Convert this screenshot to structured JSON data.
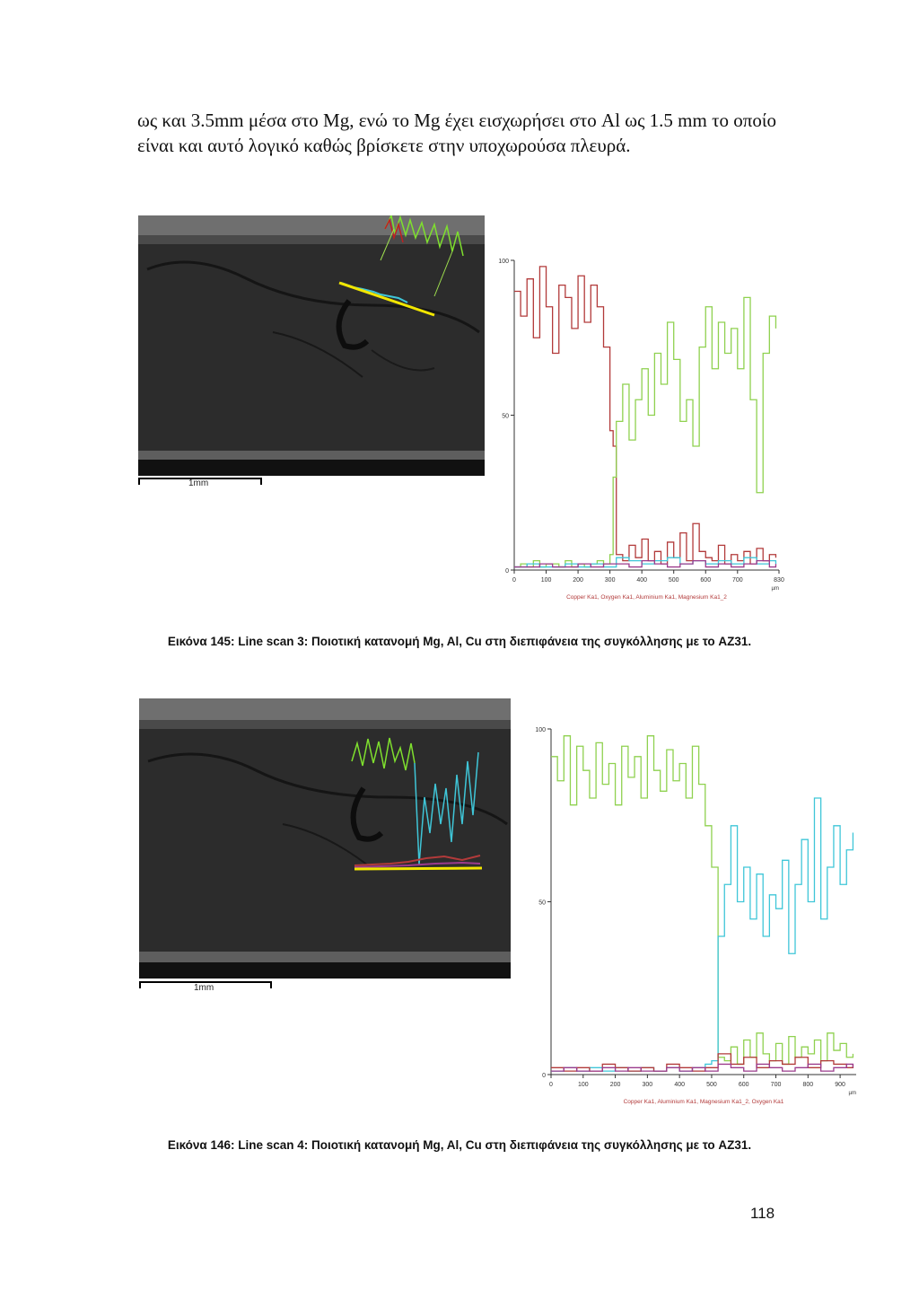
{
  "paragraph": "ως και 3.5mm μέσα στο Mg, ενώ το Mg έχει εισχωρήσει στο Al ως 1.5 mm το οποίο είναι και αυτό λογικό καθώς βρίσκετε στην υποχωρούσα πλευρά.",
  "figures": [
    {
      "scale_label": "1mm",
      "caption": "Εικόνα 145: Line scan 3: Ποιοτική κατανομή Mg, Al, Cu στη διεπιφάνεια της συγκόλλησης με το AZ31."
    },
    {
      "scale_label": "1mm",
      "caption": "Εικόνα 146: Line scan 4: Ποιοτική κατανομή Mg, Al, Cu στη διεπιφάνεια της συγκόλλησης με το AZ31."
    }
  ],
  "page_number": "118",
  "colors": {
    "copper": "#b23a3a",
    "oxygen": "#3fc6d8",
    "aluminium": "#8fd14f",
    "magnesium": "#9b3b8c",
    "beam": "#f2e600"
  },
  "chart_data": [
    {
      "type": "line",
      "xlabel": "µm",
      "ylabel": "",
      "xlim": [
        0,
        830
      ],
      "ylim": [
        0,
        100
      ],
      "x_ticks": [
        "0",
        "100",
        "200",
        "300",
        "400",
        "500",
        "600",
        "700",
        "830"
      ],
      "y_ticks": [
        "0",
        "50",
        "100"
      ],
      "legend": "Copper Ka1, Oxygen Ka1, Aluminium Ka1, Magnesium Ka1_2",
      "series": [
        {
          "name": "Copper Ka1",
          "color": "#b23a3a",
          "x": [
            0,
            20,
            40,
            60,
            80,
            100,
            120,
            140,
            160,
            180,
            200,
            220,
            240,
            260,
            280,
            300,
            310,
            320,
            340,
            360,
            380,
            400,
            420,
            440,
            460,
            480,
            500,
            520,
            540,
            560,
            580,
            600,
            620,
            640,
            660,
            680,
            700,
            720,
            740,
            760,
            780,
            800,
            820
          ],
          "y": [
            90,
            82,
            94,
            75,
            98,
            85,
            70,
            92,
            88,
            78,
            95,
            80,
            92,
            85,
            72,
            45,
            40,
            5,
            3,
            8,
            4,
            10,
            3,
            6,
            2,
            9,
            4,
            12,
            3,
            15,
            6,
            4,
            3,
            8,
            2,
            5,
            3,
            6,
            2,
            7,
            3,
            5,
            4
          ]
        },
        {
          "name": "Aluminium Ka1",
          "color": "#8fd14f",
          "x": [
            0,
            20,
            40,
            60,
            80,
            100,
            120,
            140,
            160,
            180,
            200,
            220,
            240,
            260,
            280,
            300,
            310,
            320,
            340,
            360,
            380,
            400,
            420,
            440,
            460,
            480,
            500,
            520,
            540,
            560,
            580,
            600,
            620,
            640,
            660,
            680,
            700,
            720,
            740,
            760,
            780,
            800,
            820
          ],
          "y": [
            1,
            2,
            1,
            3,
            1,
            2,
            2,
            1,
            3,
            1,
            2,
            1,
            2,
            3,
            2,
            5,
            30,
            48,
            60,
            42,
            55,
            65,
            50,
            70,
            60,
            80,
            68,
            48,
            55,
            40,
            72,
            85,
            65,
            80,
            70,
            78,
            65,
            88,
            55,
            25,
            70,
            82,
            78
          ]
        },
        {
          "name": "Oxygen Ka1",
          "color": "#3fc6d8",
          "x": [
            0,
            40,
            80,
            120,
            160,
            200,
            240,
            280,
            320,
            360,
            400,
            440,
            480,
            520,
            560,
            600,
            640,
            680,
            720,
            760,
            800,
            820
          ],
          "y": [
            1,
            2,
            1,
            1,
            2,
            1,
            2,
            1,
            4,
            3,
            2,
            3,
            4,
            2,
            3,
            2,
            3,
            2,
            4,
            2,
            3,
            2
          ]
        },
        {
          "name": "Magnesium Ka1_2",
          "color": "#9b3b8c",
          "x": [
            0,
            40,
            80,
            120,
            160,
            200,
            240,
            280,
            320,
            360,
            400,
            440,
            480,
            520,
            560,
            600,
            640,
            680,
            720,
            760,
            800,
            820
          ],
          "y": [
            1,
            1,
            2,
            1,
            1,
            2,
            1,
            2,
            2,
            1,
            3,
            2,
            1,
            2,
            3,
            1,
            2,
            1,
            2,
            3,
            1,
            2
          ]
        }
      ]
    },
    {
      "type": "line",
      "xlabel": "µm",
      "ylabel": "",
      "xlim": [
        0,
        950
      ],
      "ylim": [
        0,
        100
      ],
      "x_ticks": [
        "0",
        "100",
        "200",
        "300",
        "400",
        "500",
        "600",
        "700",
        "800",
        "900"
      ],
      "y_ticks": [
        "0",
        "50",
        "100"
      ],
      "legend": "Copper Ka1, Aluminium Ka1, Magnesium Ka1_2, Oxygen Ka1",
      "series": [
        {
          "name": "Magnesium Ka1_2",
          "color": "#8fd14f",
          "x": [
            0,
            20,
            40,
            60,
            80,
            100,
            120,
            140,
            160,
            180,
            200,
            220,
            240,
            260,
            280,
            300,
            320,
            340,
            360,
            380,
            400,
            420,
            440,
            460,
            480,
            500,
            520,
            540,
            560,
            580,
            600,
            620,
            640,
            660,
            680,
            700,
            720,
            740,
            760,
            780,
            800,
            820,
            840,
            860,
            880,
            900,
            920,
            940
          ],
          "y": [
            92,
            85,
            98,
            78,
            95,
            88,
            80,
            96,
            84,
            90,
            78,
            95,
            86,
            92,
            80,
            98,
            88,
            82,
            94,
            85,
            90,
            80,
            95,
            84,
            72,
            60,
            5,
            4,
            8,
            3,
            10,
            5,
            12,
            6,
            4,
            9,
            3,
            11,
            5,
            8,
            6,
            10,
            4,
            12,
            7,
            9,
            5,
            6
          ]
        },
        {
          "name": "Aluminium Ka1",
          "color": "#3fc6d8",
          "x": [
            0,
            40,
            80,
            120,
            160,
            200,
            240,
            280,
            320,
            360,
            400,
            440,
            480,
            500,
            520,
            540,
            560,
            580,
            600,
            620,
            640,
            660,
            680,
            700,
            720,
            740,
            760,
            780,
            800,
            820,
            840,
            860,
            880,
            900,
            920,
            940
          ],
          "y": [
            1,
            2,
            1,
            2,
            1,
            2,
            1,
            2,
            1,
            2,
            1,
            2,
            3,
            4,
            40,
            55,
            72,
            50,
            60,
            45,
            58,
            40,
            52,
            48,
            62,
            35,
            55,
            68,
            50,
            80,
            45,
            60,
            72,
            55,
            65,
            70
          ]
        },
        {
          "name": "Copper Ka1",
          "color": "#b23a3a",
          "x": [
            0,
            40,
            80,
            120,
            160,
            200,
            240,
            280,
            320,
            360,
            400,
            440,
            480,
            520,
            560,
            600,
            640,
            680,
            720,
            760,
            800,
            840,
            880,
            920,
            940
          ],
          "y": [
            2,
            1,
            2,
            1,
            3,
            2,
            1,
            2,
            1,
            3,
            2,
            1,
            2,
            6,
            3,
            5,
            2,
            4,
            3,
            5,
            2,
            4,
            3,
            2,
            3
          ]
        },
        {
          "name": "Oxygen Ka1",
          "color": "#9b3b8c",
          "x": [
            0,
            40,
            80,
            120,
            160,
            200,
            240,
            280,
            320,
            360,
            400,
            440,
            480,
            520,
            560,
            600,
            640,
            680,
            720,
            760,
            800,
            840,
            880,
            920,
            940
          ],
          "y": [
            1,
            2,
            1,
            1,
            2,
            1,
            2,
            1,
            1,
            2,
            1,
            2,
            1,
            3,
            2,
            1,
            3,
            2,
            1,
            2,
            3,
            1,
            2,
            3,
            2
          ]
        }
      ]
    }
  ]
}
